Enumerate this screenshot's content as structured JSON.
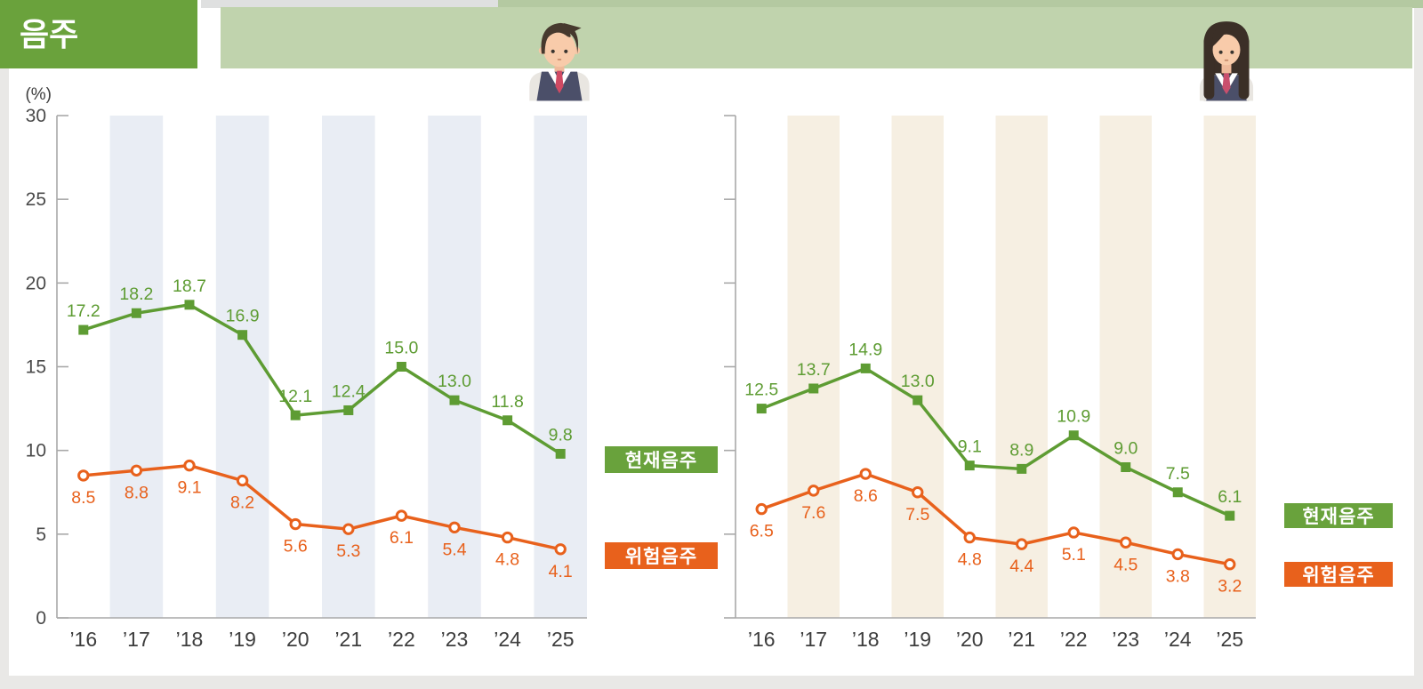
{
  "header": {
    "title": "음주"
  },
  "colors": {
    "title_green": "#6aa23c",
    "legend_green": "#69a23c",
    "line_green": "#5e9c33",
    "orange": "#e8611c",
    "banner_light_green": "#c0d3ad",
    "band_blue_gray": "#e9edf4",
    "band_cream": "#f6efe2",
    "axis_gray": "#a9a9a9"
  },
  "chart_data": [
    {
      "type": "line",
      "group": "male-students",
      "icon": "male-student-icon",
      "ylabel": "(%)",
      "ylim": [
        0,
        30
      ],
      "yticks": [
        0,
        5,
        10,
        15,
        20,
        25,
        30
      ],
      "show_y_tick_labels": true,
      "grid": false,
      "band_color": "#e9edf4",
      "banded_category_indices": [
        1,
        3,
        5,
        7,
        9
      ],
      "x": [
        "’16",
        "’17",
        "’18",
        "’19",
        "’20",
        "’21",
        "’22",
        "’23",
        "’24",
        "’25"
      ],
      "series": [
        {
          "name": "현재음주",
          "color": "#5e9c33",
          "marker": "square",
          "label_position": "above",
          "values": [
            17.2,
            18.2,
            18.7,
            16.9,
            12.1,
            12.4,
            15.0,
            13.0,
            11.8,
            9.8
          ]
        },
        {
          "name": "위험음주",
          "color": "#e8611c",
          "marker": "open-circle",
          "label_position": "below",
          "values": [
            8.5,
            8.8,
            9.1,
            8.2,
            5.6,
            5.3,
            6.1,
            5.4,
            4.8,
            4.1
          ]
        }
      ],
      "legend_position": "right"
    },
    {
      "type": "line",
      "group": "female-students",
      "icon": "female-student-icon",
      "ylabel": "",
      "ylim": [
        0,
        30
      ],
      "yticks": [
        0,
        5,
        10,
        15,
        20,
        25,
        30
      ],
      "show_y_tick_labels": false,
      "grid": false,
      "band_color": "#f6efe2",
      "banded_category_indices": [
        1,
        3,
        5,
        7,
        9
      ],
      "x": [
        "’16",
        "’17",
        "’18",
        "’19",
        "’20",
        "’21",
        "’22",
        "’23",
        "’24",
        "’25"
      ],
      "series": [
        {
          "name": "현재음주",
          "color": "#5e9c33",
          "marker": "square",
          "label_position": "above",
          "values": [
            12.5,
            13.7,
            14.9,
            13.0,
            9.1,
            8.9,
            10.9,
            9.0,
            7.5,
            6.1
          ]
        },
        {
          "name": "위험음주",
          "color": "#e8611c",
          "marker": "open-circle",
          "label_position": "below",
          "values": [
            6.5,
            7.6,
            8.6,
            7.5,
            4.8,
            4.4,
            5.1,
            4.5,
            3.8,
            3.2
          ]
        }
      ],
      "legend_position": "right"
    }
  ]
}
